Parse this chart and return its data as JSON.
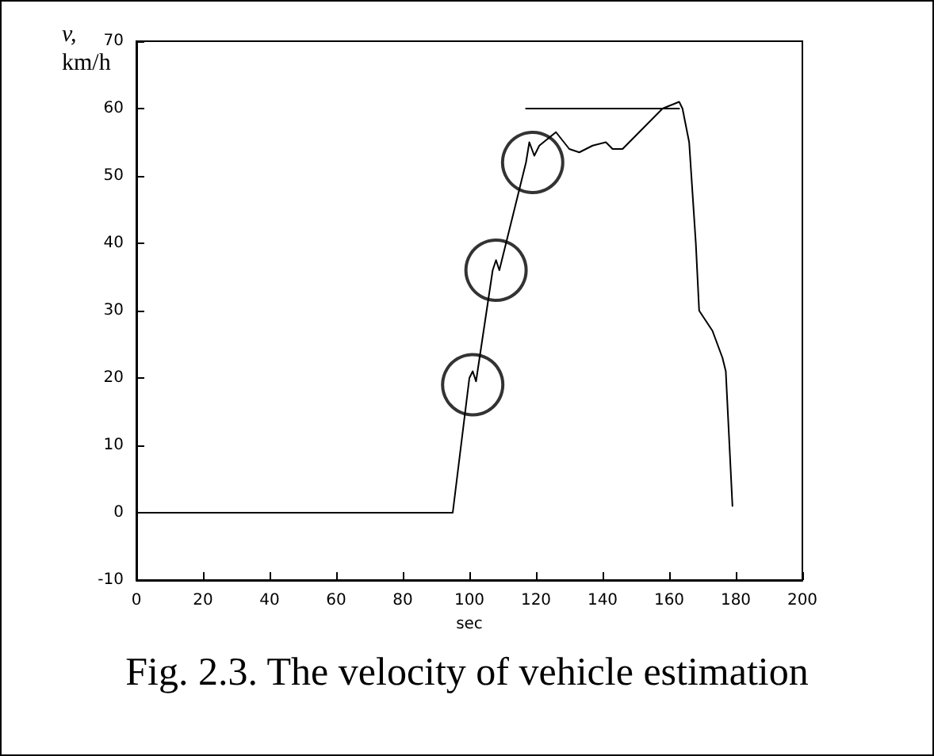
{
  "chart_data": {
    "type": "line",
    "ylabel": "v,\nkm/h",
    "xlabel": "sec",
    "annotations": [
      "Fig. 2.3. The velocity of vehicle estimation"
    ],
    "xlim": [
      0,
      200
    ],
    "xticks": [
      0,
      20,
      40,
      60,
      80,
      100,
      120,
      140,
      160,
      180,
      200
    ],
    "ylim": [
      -10,
      70
    ],
    "yticks": [
      -10,
      0,
      10,
      20,
      30,
      40,
      50,
      60,
      70
    ],
    "grid": false,
    "marker": "none",
    "line_style": "solid",
    "series": [
      {
        "color": "#000000",
        "x": [
          0,
          95,
          100,
          101,
          102,
          107,
          108,
          109,
          110,
          117,
          118,
          119.5,
          121,
          126,
          130,
          133,
          137,
          141,
          143,
          146,
          152,
          158,
          163,
          164,
          166,
          168,
          169,
          173,
          176,
          177,
          179
        ],
        "values": [
          0,
          0,
          20,
          21,
          19.5,
          36,
          37.5,
          36,
          38,
          52,
          55,
          53,
          54.5,
          56.5,
          54,
          53.5,
          54.5,
          55,
          54,
          54,
          57,
          60,
          61,
          60,
          55,
          40,
          30,
          27,
          23,
          21,
          1
        ]
      },
      {
        "color": "#000000",
        "x": [
          117,
          163
        ],
        "values": [
          60,
          60
        ]
      },
      {
        "type": "scatter",
        "marker": "circle",
        "color": "#000000",
        "x": [
          101,
          108,
          119
        ],
        "values": [
          19,
          36,
          52
        ]
      }
    ]
  }
}
